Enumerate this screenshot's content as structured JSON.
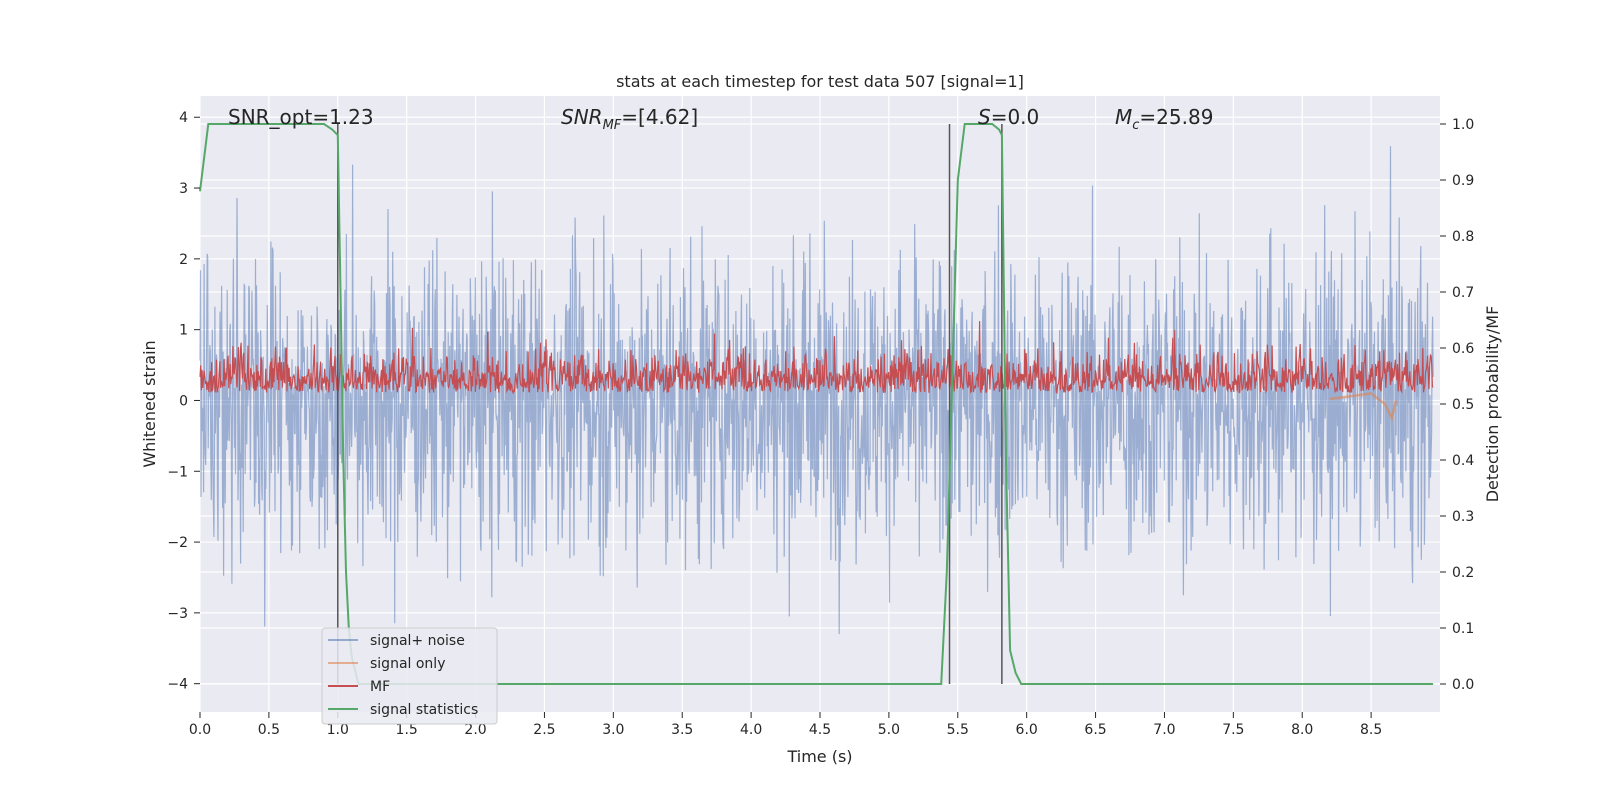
{
  "chart_data": {
    "type": "line",
    "title": "stats at each timestep for test data 507 [signal=1]",
    "xlabel": "Time (s)",
    "ylabel": "Whitened strain",
    "y2label": "Detection probability/MF",
    "xlim": [
      0.0,
      9.0
    ],
    "ylim": [
      -4.4,
      4.3
    ],
    "y2lim": [
      -0.05,
      1.05
    ],
    "xticks": [
      "0.0",
      "0.5",
      "1.0",
      "1.5",
      "2.0",
      "2.5",
      "3.0",
      "3.5",
      "4.0",
      "4.5",
      "5.0",
      "5.5",
      "6.0",
      "6.5",
      "7.0",
      "7.5",
      "8.0",
      "8.5"
    ],
    "yticks": [
      "4",
      "3",
      "2",
      "1",
      "0",
      "−1",
      "−2",
      "−3",
      "−4"
    ],
    "y2ticks": [
      "1.0",
      "0.9",
      "0.8",
      "0.7",
      "0.6",
      "0.5",
      "0.4",
      "0.3",
      "0.2",
      "0.1",
      "0.0"
    ],
    "grid": true,
    "legend_position": "lower-left",
    "background": "#eaeaf2",
    "annotations": [
      {
        "text": "SNR_opt=1.23",
        "x": 0.2,
        "y": 4.0
      },
      {
        "text_main": "SNR",
        "text_sub": "MF",
        "text_rest": "=[4.62]",
        "x": 2.6,
        "y": 4.0
      },
      {
        "text_main": "S",
        "text_rest": "=0.0",
        "x": 5.6,
        "y": 4.0
      },
      {
        "text_main": "M",
        "text_sub": "c",
        "text_rest": "=25.89",
        "x": 6.6,
        "y": 4.0
      }
    ],
    "vlines": [
      1.0,
      5.44,
      5.82
    ],
    "series": [
      {
        "name": "signal+ noise",
        "color": "#4c72b0",
        "axis": "left",
        "amplitude_range": [
          -3.3,
          3.8
        ]
      },
      {
        "name": "signal only",
        "color": "#dd8452",
        "axis": "left",
        "x": [
          8.2,
          8.35,
          8.5,
          8.6,
          8.65,
          8.68
        ],
        "y": [
          0.02,
          0.06,
          0.1,
          -0.05,
          -0.25,
          0.0
        ]
      },
      {
        "name": "MF",
        "color": "#c44e52",
        "axis": "right",
        "band": [
          0.5,
          0.6
        ]
      },
      {
        "name": "signal statistics",
        "color": "#55a868",
        "axis": "right",
        "x": [
          0.0,
          0.06,
          0.1,
          0.5,
          0.9,
          0.96,
          1.0,
          1.02,
          1.04,
          1.06,
          1.08,
          1.1,
          1.15,
          1.2,
          5.3,
          5.38,
          5.42,
          5.46,
          5.5,
          5.55,
          5.75,
          5.8,
          5.82,
          5.85,
          5.88,
          5.92,
          5.96,
          6.0,
          8.95
        ],
        "y": [
          0.88,
          1.0,
          1.0,
          1.0,
          1.0,
          0.99,
          0.98,
          0.7,
          0.4,
          0.2,
          0.1,
          0.05,
          0.0,
          0.0,
          0.0,
          0.0,
          0.2,
          0.55,
          0.9,
          1.0,
          1.0,
          0.99,
          0.98,
          0.4,
          0.06,
          0.02,
          0.0,
          0.0,
          0.0
        ]
      }
    ]
  }
}
